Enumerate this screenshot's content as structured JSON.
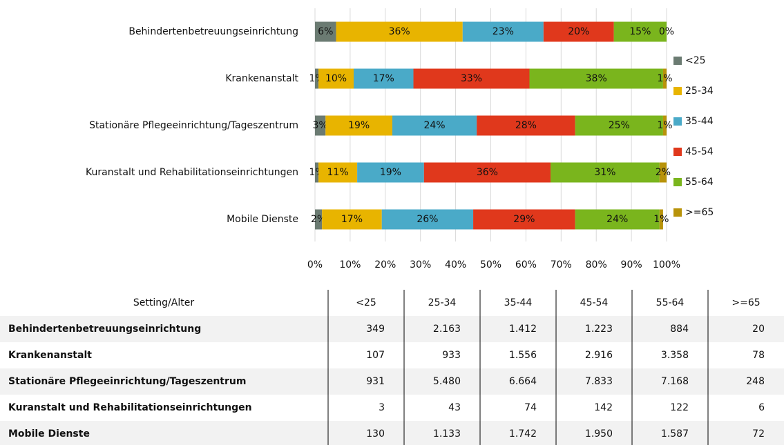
{
  "chart_data": {
    "type": "bar",
    "orientation": "horizontal",
    "stacked": true,
    "categories": [
      "Behindertenbetreuungseinrichtung",
      "Krankenanstalt",
      "Stationäre Pflegeeinrichtung/Tageszentrum",
      "Kuranstalt und Rehabilitationseinrichtungen",
      "Mobile Dienste"
    ],
    "series": [
      {
        "name": "<25",
        "color": "#6b7b72",
        "values": [
          6,
          1,
          3,
          1,
          2
        ],
        "value_labels": [
          "6%",
          "1%",
          "3%",
          "1%",
          "2%"
        ]
      },
      {
        "name": "25-34",
        "color": "#e8b400",
        "values": [
          36,
          10,
          19,
          11,
          17
        ],
        "value_labels": [
          "36%",
          "10%",
          "19%",
          "11%",
          "17%"
        ]
      },
      {
        "name": "35-44",
        "color": "#4aaac8",
        "values": [
          23,
          17,
          24,
          19,
          26
        ],
        "value_labels": [
          "23%",
          "17%",
          "24%",
          "19%",
          "26%"
        ]
      },
      {
        "name": "45-54",
        "color": "#e0381c",
        "values": [
          20,
          33,
          28,
          36,
          29
        ],
        "value_labels": [
          "20%",
          "33%",
          "28%",
          "36%",
          "29%"
        ]
      },
      {
        "name": "55-64",
        "color": "#7ab51d",
        "values": [
          15,
          38,
          25,
          31,
          24
        ],
        "value_labels": [
          "15%",
          "38%",
          "25%",
          "31%",
          "24%"
        ]
      },
      {
        "name": ">=65",
        "color": "#b8930a",
        "values": [
          0,
          1,
          1,
          2,
          1
        ],
        "value_labels": [
          "0%",
          "1%",
          "1%",
          "2%",
          "1%"
        ]
      }
    ],
    "xlim": [
      0,
      100
    ],
    "xticks": [
      {
        "value": 0,
        "label": "0%"
      },
      {
        "value": 10,
        "label": "10%"
      },
      {
        "value": 20,
        "label": "20%"
      },
      {
        "value": 30,
        "label": "30%"
      },
      {
        "value": 40,
        "label": "40%"
      },
      {
        "value": 50,
        "label": "50%"
      },
      {
        "value": 60,
        "label": "60%"
      },
      {
        "value": 70,
        "label": "70%"
      },
      {
        "value": 80,
        "label": "80%"
      },
      {
        "value": 90,
        "label": "90%"
      },
      {
        "value": 100,
        "label": "100%"
      }
    ],
    "grid": true,
    "legend": "right"
  },
  "table": {
    "header": [
      "Setting/Alter",
      "<25",
      "25-34",
      "35-44",
      "45-54",
      "55-64",
      ">=65"
    ],
    "rows": [
      [
        "Behindertenbetreuungseinrichtung",
        "349",
        "2.163",
        "1.412",
        "1.223",
        "884",
        "20"
      ],
      [
        "Krankenanstalt",
        "107",
        "933",
        "1.556",
        "2.916",
        "3.358",
        "78"
      ],
      [
        "Stationäre Pflegeeinrichtung/Tageszentrum",
        "931",
        "5.480",
        "6.664",
        "7.833",
        "7.168",
        "248"
      ],
      [
        "Kuranstalt und Rehabilitationseinrichtungen",
        "3",
        "43",
        "74",
        "142",
        "122",
        "6"
      ],
      [
        "Mobile Dienste",
        "130",
        "1.133",
        "1.742",
        "1.950",
        "1.587",
        "72"
      ]
    ]
  }
}
